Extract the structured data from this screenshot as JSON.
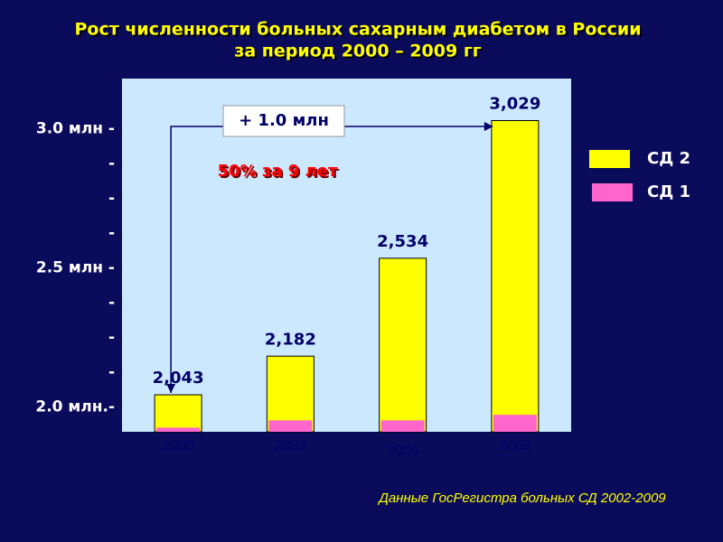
{
  "chart_data": {
    "type": "bar",
    "overlap": true,
    "title": [
      "Рост  численности больных сахарным диабетом в России",
      "за период 2000 – 2009 гг"
    ],
    "categories": [
      "2000",
      "2003",
      "2006",
      "2009"
    ],
    "series": [
      {
        "name": "СД 2",
        "color": "#ffff00",
        "values": [
          2.043,
          2.182,
          2.534,
          3.029
        ],
        "value_labels": [
          "2,043",
          "2,182",
          "2,534",
          "3,029"
        ]
      },
      {
        "name": "СД 1",
        "color": "#ff66cc",
        "values": [
          1.925,
          1.951,
          1.951,
          1.971
        ]
      }
    ],
    "ylim": [
      1.91,
      3.18
    ],
    "yticks": [
      {
        "value": 2.0,
        "label": "2.0 млн.-"
      },
      {
        "value": 2.125,
        "label": "-"
      },
      {
        "value": 2.25,
        "label": "-"
      },
      {
        "value": 2.375,
        "label": "-"
      },
      {
        "value": 2.5,
        "label": "2.5 млн -"
      },
      {
        "value": 2.625,
        "label": "-"
      },
      {
        "value": 2.75,
        "label": "-"
      },
      {
        "value": 2.875,
        "label": "-"
      },
      {
        "value": 3.0,
        "label": "3.0 млн -"
      }
    ],
    "annotations": [
      "+ 1.0 млн",
      "50% за 9 лет"
    ],
    "source": "Данные ГосРегистра больных СД 2002-2009"
  }
}
